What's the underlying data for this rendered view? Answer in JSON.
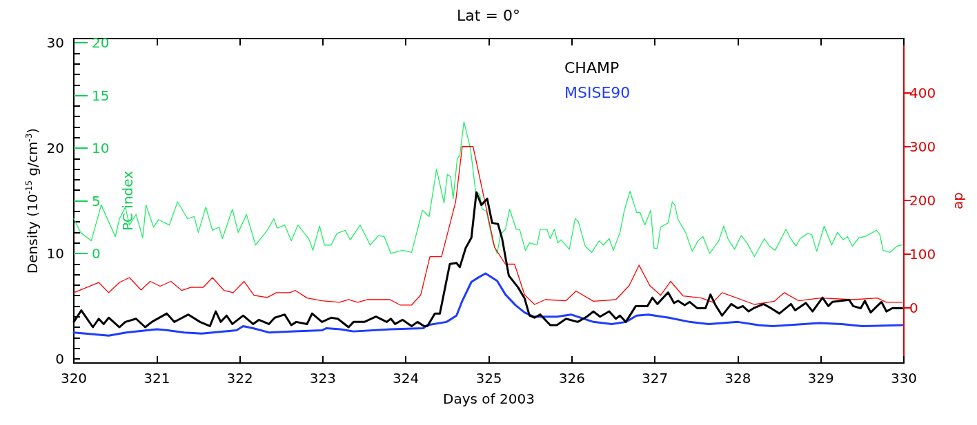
{
  "chart_data": {
    "type": "line",
    "title": "Lat = 0°",
    "xlabel": "Days of 2003",
    "ylabel": "Density (10$^{-15}$ g/cm$^{-3}$)",
    "y2label": "ap",
    "y3label": "PC index",
    "xlim": [
      320,
      330
    ],
    "xticks": [
      320,
      321,
      322,
      323,
      324,
      325,
      326,
      327,
      328,
      329,
      330
    ],
    "ylim": [
      -0.4,
      30.4
    ],
    "yticks": [
      0,
      {
        "value": 1,
        "label": null
      },
      {
        "value": 2,
        "label": null
      },
      {
        "value": 3,
        "label": null
      },
      {
        "value": 4,
        "label": null
      },
      {
        "value": 5,
        "label": null
      },
      {
        "value": 6,
        "label": null
      },
      {
        "value": 7,
        "label": null
      },
      {
        "value": 8,
        "label": null
      },
      {
        "value": 9,
        "label": null
      },
      10,
      {
        "value": 11,
        "label": null
      },
      {
        "value": 12,
        "label": null
      },
      {
        "value": 13,
        "label": null
      },
      {
        "value": 14,
        "label": null
      },
      {
        "value": 15,
        "label": null
      },
      {
        "value": 16,
        "label": null
      },
      {
        "value": 17,
        "label": null
      },
      {
        "value": 18,
        "label": null
      },
      {
        "value": 19,
        "label": null
      },
      20,
      {
        "value": 21,
        "label": null
      },
      {
        "value": 22,
        "label": null
      },
      {
        "value": 23,
        "label": null
      },
      {
        "value": 24,
        "label": null
      },
      {
        "value": 25,
        "label": null
      },
      {
        "value": 26,
        "label": null
      },
      {
        "value": 27,
        "label": null
      },
      {
        "value": 28,
        "label": null
      },
      {
        "value": 29,
        "label": null
      },
      30
    ],
    "y2lim": [
      -103,
      501
    ],
    "y2ticks": [
      0,
      100,
      200,
      300,
      400
    ],
    "y3lim": [
      -10.4,
      20.4
    ],
    "y3ticks": [
      0,
      5,
      10,
      15,
      20
    ],
    "legend": "top right",
    "marker": "none",
    "line_style": "solid",
    "series": [
      {
        "axis": "y3",
        "color": "#22ee66",
        "x": [
          320.0,
          320.08,
          320.21,
          320.33,
          320.5,
          320.55,
          320.62,
          320.67,
          320.75,
          320.83,
          320.87,
          320.96,
          321.02,
          321.15,
          321.25,
          321.37,
          321.45,
          321.5,
          321.59,
          321.67,
          321.75,
          321.79,
          321.91,
          321.98,
          322.08,
          322.19,
          322.33,
          322.41,
          322.45,
          322.54,
          322.62,
          322.7,
          322.83,
          322.88,
          322.96,
          323.02,
          323.1,
          323.17,
          323.27,
          323.33,
          323.45,
          323.57,
          323.67,
          323.74,
          323.82,
          323.96,
          324.07,
          324.2,
          324.28,
          324.37,
          324.46,
          324.5,
          324.54,
          324.57,
          324.62,
          324.65,
          324.7,
          324.78,
          324.84,
          324.89,
          324.92,
          324.97,
          325.05,
          325.1,
          325.14,
          325.2,
          325.25,
          325.33,
          325.37,
          325.44,
          325.49,
          325.58,
          325.62,
          325.7,
          325.74,
          325.79,
          325.83,
          325.87,
          325.97,
          326.04,
          326.08,
          326.16,
          326.24,
          326.33,
          326.38,
          326.45,
          326.5,
          326.58,
          326.63,
          326.7,
          326.78,
          326.82,
          326.88,
          326.95,
          326.99,
          327.03,
          327.07,
          327.16,
          327.21,
          327.24,
          327.28,
          327.37,
          327.45,
          327.52,
          327.58,
          327.66,
          327.77,
          327.83,
          327.88,
          327.96,
          328.04,
          328.11,
          328.2,
          328.32,
          328.38,
          328.45,
          328.58,
          328.63,
          328.7,
          328.75,
          328.84,
          328.89,
          328.95,
          329.04,
          329.13,
          329.2,
          329.27,
          329.32,
          329.38,
          329.46,
          329.53,
          329.67,
          329.71,
          329.75,
          329.83,
          329.92,
          329.98
        ],
        "values": [
          3.3,
          2.0,
          1.2,
          4.6,
          1.6,
          3.3,
          4.4,
          2.7,
          3.7,
          1.5,
          4.6,
          2.5,
          3.2,
          2.7,
          4.9,
          3.3,
          3.5,
          2.0,
          4.4,
          2.2,
          2.5,
          1.4,
          4.2,
          2.0,
          3.7,
          0.8,
          2.2,
          3.3,
          2.4,
          2.7,
          1.2,
          2.7,
          1.4,
          0.3,
          2.6,
          0.8,
          0.8,
          1.9,
          2.2,
          1.3,
          2.7,
          0.8,
          1.7,
          1.6,
          0.0,
          0.3,
          0.1,
          4.1,
          3.5,
          8.0,
          4.8,
          7.5,
          7.3,
          5.2,
          9.0,
          9.3,
          12.5,
          9.9,
          5.9,
          5.6,
          4.2,
          4.0,
          1.0,
          0.0,
          1.8,
          2.3,
          4.2,
          2.3,
          2.3,
          0.3,
          1.0,
          0.8,
          2.3,
          2.3,
          1.4,
          2.3,
          1.0,
          1.3,
          0.4,
          3.3,
          3.0,
          0.7,
          0.1,
          1.2,
          0.8,
          1.4,
          0.3,
          2.0,
          4.0,
          5.9,
          3.9,
          3.9,
          2.7,
          4.1,
          0.5,
          0.5,
          2.5,
          2.9,
          4.9,
          4.6,
          3.2,
          2.0,
          0.2,
          1.2,
          1.6,
          0.0,
          1.2,
          2.6,
          1.4,
          0.4,
          1.7,
          1.0,
          -0.3,
          1.4,
          0.7,
          0.3,
          2.3,
          1.5,
          0.7,
          1.4,
          1.9,
          1.8,
          0.2,
          2.6,
          0.8,
          2.0,
          1.3,
          1.6,
          0.7,
          1.5,
          1.6,
          2.2,
          1.8,
          0.3,
          0.1,
          0.7,
          0.8
        ]
      },
      {
        "axis": "y2",
        "color": "#ff0000",
        "x": [
          320.0,
          320.3,
          320.42,
          320.55,
          320.67,
          320.81,
          320.92,
          321.04,
          321.17,
          321.3,
          321.41,
          321.56,
          321.67,
          321.81,
          321.92,
          322.05,
          322.17,
          322.33,
          322.44,
          322.6,
          322.67,
          322.81,
          322.99,
          323.2,
          323.31,
          323.42,
          323.54,
          323.81,
          323.93,
          324.07,
          324.18,
          324.29,
          324.43,
          324.6,
          324.68,
          324.81,
          325.07,
          325.2,
          325.31,
          325.43,
          325.55,
          325.68,
          325.93,
          326.05,
          326.26,
          326.53,
          326.69,
          326.81,
          326.94,
          327.07,
          327.19,
          327.34,
          327.56,
          327.7,
          327.81,
          328.2,
          328.44,
          328.56,
          328.73,
          329.0,
          329.39,
          329.68,
          329.79,
          329.98
        ],
        "values": [
          28,
          47,
          28,
          47,
          56,
          33,
          49,
          40,
          49,
          32,
          38,
          38,
          56,
          32,
          28,
          49,
          23,
          19,
          28,
          28,
          32,
          18,
          13,
          10,
          15,
          10,
          15,
          15,
          5,
          5,
          24,
          95,
          95,
          197,
          300,
          300,
          112,
          81,
          81,
          24,
          6,
          15,
          13,
          31,
          12,
          15,
          41,
          79,
          41,
          23,
          49,
          22,
          18,
          10,
          28,
          6,
          12,
          28,
          13,
          18,
          15,
          18,
          10,
          10
        ]
      },
      {
        "name": "MSISE90",
        "axis": "y",
        "color": "#1f3cff",
        "x": [
          320.0,
          320.42,
          320.63,
          321.0,
          321.13,
          321.33,
          321.54,
          321.96,
          322.04,
          322.16,
          322.35,
          322.66,
          322.99,
          323.04,
          323.21,
          323.37,
          323.82,
          324.21,
          324.26,
          324.49,
          324.61,
          324.68,
          324.79,
          324.87,
          324.96,
          325.1,
          325.2,
          325.32,
          325.43,
          325.54,
          325.82,
          325.99,
          326.26,
          326.48,
          326.65,
          326.78,
          326.92,
          327.17,
          327.42,
          327.65,
          328.0,
          328.25,
          328.42,
          328.98,
          329.25,
          329.5,
          329.98
        ],
        "values": [
          2.5,
          2.2,
          2.5,
          2.8,
          2.7,
          2.5,
          2.4,
          2.7,
          3.1,
          2.9,
          2.5,
          2.6,
          2.7,
          2.9,
          2.8,
          2.6,
          2.8,
          2.9,
          3.2,
          3.5,
          4.1,
          5.5,
          7.3,
          7.7,
          8.1,
          7.4,
          6.1,
          5.1,
          4.4,
          4.0,
          4.0,
          4.2,
          3.5,
          3.3,
          3.5,
          4.1,
          4.2,
          3.9,
          3.5,
          3.3,
          3.5,
          3.2,
          3.1,
          3.4,
          3.3,
          3.1,
          3.2
        ]
      },
      {
        "name": "CHAMP",
        "axis": "y",
        "color": "#000000",
        "x": [
          320.0,
          320.09,
          320.23,
          320.3,
          320.36,
          320.42,
          320.55,
          320.62,
          320.75,
          320.86,
          320.94,
          321.12,
          321.21,
          321.38,
          321.52,
          321.64,
          321.71,
          321.77,
          321.84,
          321.91,
          322.04,
          322.16,
          322.23,
          322.35,
          322.42,
          322.54,
          322.62,
          322.68,
          322.81,
          322.87,
          322.99,
          323.1,
          323.18,
          323.31,
          323.37,
          323.5,
          323.64,
          323.77,
          323.82,
          323.87,
          323.96,
          324.07,
          324.14,
          324.22,
          324.26,
          324.35,
          324.41,
          324.53,
          324.61,
          324.65,
          324.72,
          324.79,
          324.85,
          324.91,
          324.98,
          325.04,
          325.11,
          325.16,
          325.24,
          325.35,
          325.43,
          325.49,
          325.55,
          325.62,
          325.74,
          325.82,
          325.93,
          326.07,
          326.18,
          326.26,
          326.34,
          326.45,
          326.53,
          326.58,
          326.65,
          326.77,
          326.91,
          326.97,
          327.03,
          327.16,
          327.23,
          327.28,
          327.36,
          327.42,
          327.51,
          327.61,
          327.67,
          327.73,
          327.81,
          327.92,
          328.0,
          328.06,
          328.13,
          328.19,
          328.31,
          328.4,
          328.5,
          328.64,
          328.69,
          328.82,
          328.9,
          329.02,
          329.09,
          329.14,
          329.34,
          329.39,
          329.48,
          329.53,
          329.6,
          329.73,
          329.79,
          329.86,
          329.98
        ],
        "values": [
          3.5,
          4.6,
          3.0,
          3.8,
          3.3,
          3.9,
          3.0,
          3.5,
          3.8,
          3.0,
          3.5,
          4.3,
          3.5,
          4.2,
          3.5,
          3.1,
          4.5,
          3.5,
          4.1,
          3.3,
          4.1,
          3.3,
          3.7,
          3.3,
          3.9,
          4.2,
          3.2,
          3.5,
          3.3,
          4.3,
          3.5,
          3.9,
          3.8,
          3.0,
          3.5,
          3.5,
          4.0,
          3.5,
          3.8,
          3.3,
          3.7,
          3.1,
          3.5,
          3.1,
          3.1,
          4.3,
          4.3,
          9.0,
          9.1,
          8.7,
          10.5,
          11.5,
          15.8,
          14.6,
          15.2,
          12.9,
          12.8,
          11.4,
          7.9,
          6.8,
          5.75,
          4.1,
          3.9,
          4.2,
          3.2,
          3.2,
          3.8,
          3.5,
          4.0,
          4.5,
          4.0,
          4.5,
          3.8,
          4.1,
          3.5,
          5.0,
          5.0,
          5.8,
          5.2,
          6.3,
          5.3,
          5.5,
          5.1,
          5.4,
          4.8,
          4.8,
          6.1,
          5.1,
          4.1,
          5.2,
          4.8,
          5.0,
          4.5,
          4.8,
          5.2,
          4.8,
          4.3,
          5.2,
          4.6,
          5.3,
          4.5,
          5.8,
          5.0,
          5.4,
          5.6,
          5.0,
          4.8,
          5.5,
          4.4,
          5.4,
          4.5,
          4.8,
          4.8
        ]
      }
    ]
  }
}
